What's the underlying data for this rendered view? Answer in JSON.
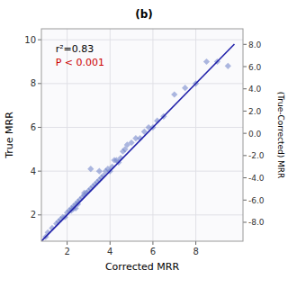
{
  "chart_data": {
    "type": "scatter",
    "title": "(b)",
    "x_label": "Corrected MRR",
    "y_label": "True MRR",
    "y2_label": "(True-Corrected) MRR",
    "xlim": [
      0.8,
      10.2
    ],
    "ylim": [
      0.8,
      10.5
    ],
    "xticks": [
      2,
      4,
      6,
      8
    ],
    "yticks": [
      2,
      4,
      6,
      8,
      10
    ],
    "y2lim": [
      -9.7,
      9.4
    ],
    "y2ticks": [
      {
        "value": -8,
        "label": "-8.0"
      },
      {
        "value": -6,
        "label": "-6.0"
      },
      {
        "value": -4,
        "label": "-4.0"
      },
      {
        "value": -2,
        "label": "-2.0"
      },
      {
        "value": 0,
        "label": "0.0"
      },
      {
        "value": 2,
        "label": "2.0"
      },
      {
        "value": 4,
        "label": "4.0"
      },
      {
        "value": 6,
        "label": "6.0"
      },
      {
        "value": 8,
        "label": "8.0"
      }
    ],
    "grid": true,
    "series": [
      {
        "type": "scatter",
        "marker": "diamond",
        "color": "#7788cc",
        "x": [
          1.0,
          1.1,
          1.3,
          1.5,
          1.6,
          1.7,
          1.8,
          1.9,
          2.0,
          2.1,
          2.2,
          2.2,
          2.3,
          2.3,
          2.4,
          2.4,
          2.5,
          2.5,
          2.6,
          2.7,
          2.8,
          2.8,
          2.9,
          3.0,
          3.1,
          3.1,
          3.2,
          3.3,
          3.4,
          3.5,
          3.5,
          3.6,
          3.7,
          3.8,
          3.9,
          4.0,
          4.1,
          4.2,
          4.3,
          4.4,
          4.5,
          4.6,
          4.7,
          4.8,
          5.0,
          5.2,
          5.4,
          5.6,
          5.8,
          6.0,
          6.2,
          6.5,
          7.0,
          7.5,
          8.0,
          8.5,
          9.0,
          9.5
        ],
        "values": [
          1.0,
          1.2,
          1.4,
          1.6,
          1.7,
          1.8,
          1.9,
          1.9,
          2.1,
          2.2,
          2.2,
          2.3,
          2.3,
          2.4,
          2.3,
          2.5,
          2.5,
          2.6,
          2.7,
          2.8,
          2.9,
          3.0,
          3.0,
          3.1,
          3.2,
          4.1,
          3.3,
          3.4,
          3.5,
          3.6,
          4.0,
          3.7,
          3.8,
          4.0,
          4.1,
          4.0,
          4.2,
          4.5,
          4.5,
          4.4,
          4.6,
          4.9,
          5.0,
          5.2,
          5.3,
          5.5,
          5.5,
          5.8,
          6.0,
          6.0,
          6.3,
          6.5,
          7.5,
          7.8,
          8.0,
          9.0,
          9.0,
          8.8
        ]
      },
      {
        "type": "line",
        "color": "#2222aa",
        "x": [
          0.8,
          9.8
        ],
        "values": [
          0.8,
          9.8
        ]
      }
    ],
    "annotations": [
      {
        "text": "r²=0.83"
      },
      {
        "text": "P < 0.001",
        "color": "#cc0000"
      }
    ]
  }
}
